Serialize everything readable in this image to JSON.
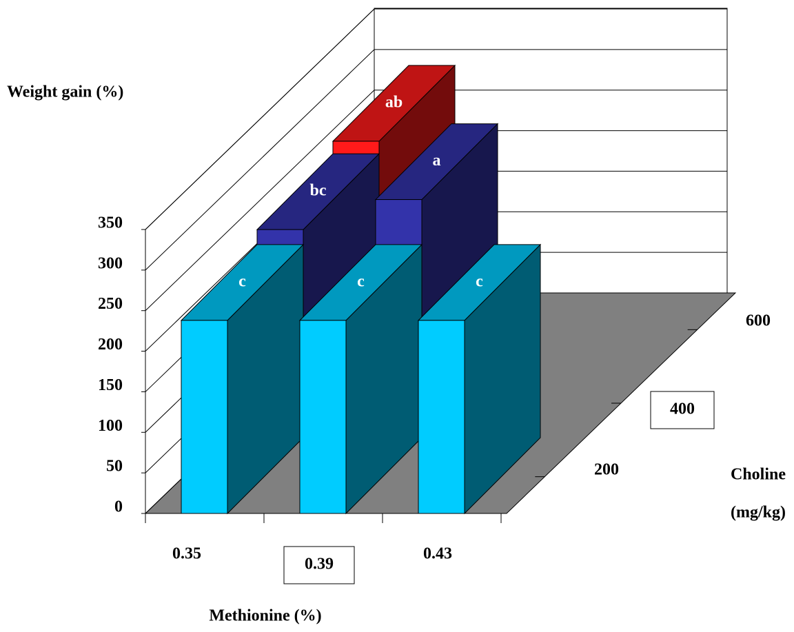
{
  "chart_data": {
    "type": "bar3d",
    "ylabel": "Weight gain (%)",
    "xlabel": "Methionine (%)",
    "zlabel": [
      "Choline",
      "(mg/kg)"
    ],
    "categories": [
      "0.35",
      "0.39",
      "0.43"
    ],
    "series": [
      {
        "name": "200",
        "color": "#00ccff",
        "values": [
          238,
          238,
          238
        ],
        "letters": [
          "c",
          "c",
          "c"
        ]
      },
      {
        "name": "400",
        "color": "#3333aa",
        "values": [
          259,
          296,
          null
        ],
        "letters": [
          "bc",
          "a",
          null
        ]
      },
      {
        "name": "600",
        "color": "#ff1a1a",
        "values": [
          277,
          null,
          null
        ],
        "letters": [
          "ab",
          null,
          null
        ]
      }
    ],
    "ylim": [
      0,
      350
    ],
    "yticks": [
      0,
      50,
      100,
      150,
      200,
      250,
      300,
      350
    ],
    "boxed": [
      "0.39",
      "400"
    ],
    "grid": true
  }
}
